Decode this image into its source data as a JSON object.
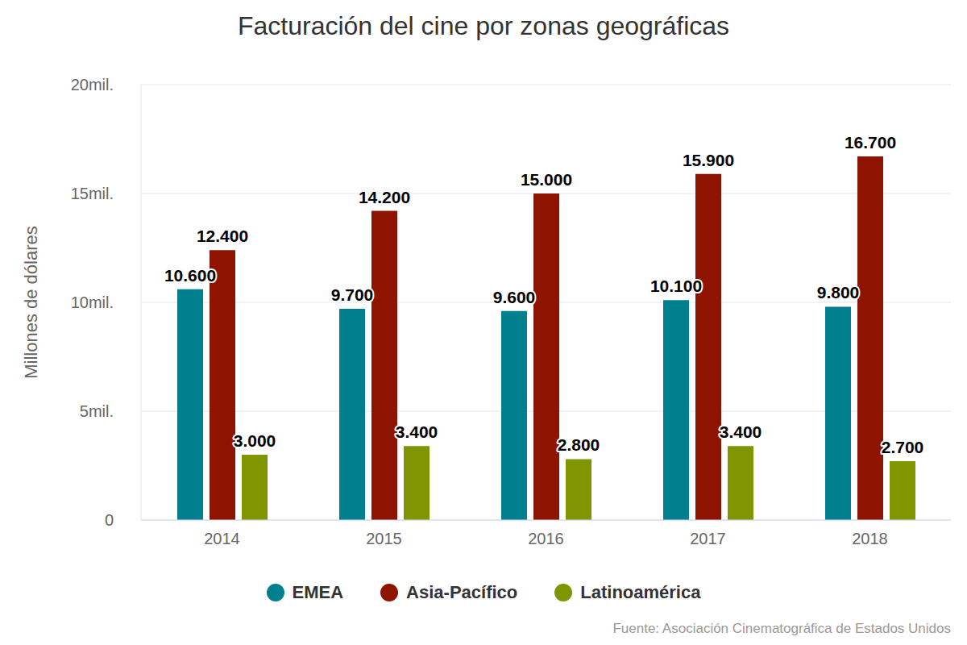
{
  "chart_data": {
    "type": "bar",
    "title": "Facturación del cine por zonas geográficas",
    "y_label": "Millones de dólares",
    "source": "Fuente: Asociación Cinematográfica de Estados Unidos",
    "categories": [
      "2014",
      "2015",
      "2016",
      "2017",
      "2018"
    ],
    "series": [
      {
        "name": "EMEA",
        "color": "#007f8e",
        "values": [
          10600,
          9700,
          9600,
          10100,
          9800
        ],
        "value_labels": [
          "10.600",
          "9.700",
          "9.600",
          "10.100",
          "9.800"
        ]
      },
      {
        "name": "Asia-Pacífico",
        "color": "#8e1300",
        "values": [
          12400,
          14200,
          15000,
          15900,
          16700
        ],
        "value_labels": [
          "12.400",
          "14.200",
          "15.000",
          "15.900",
          "16.700"
        ]
      },
      {
        "name": "Latinoamérica",
        "color": "#7f9600",
        "values": [
          3000,
          3400,
          2800,
          3400,
          2700
        ],
        "value_labels": [
          "3.000",
          "3.400",
          "2.800",
          "3.400",
          "2.700"
        ]
      }
    ],
    "ylim": [
      0,
      20000
    ],
    "yticks": [
      0,
      {
        "value": 5000,
        "label": "5mil."
      },
      {
        "value": 10000,
        "label": "10mil."
      },
      {
        "value": 15000,
        "label": "15mil."
      },
      {
        "value": 20000,
        "label": "20mil."
      }
    ],
    "grid": true,
    "legend": "bottom",
    "data_labels": true
  }
}
